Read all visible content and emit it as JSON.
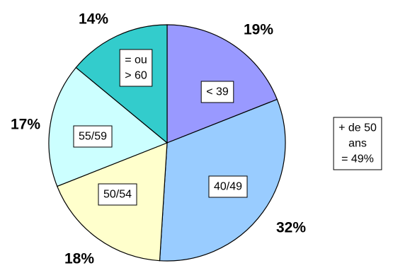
{
  "chart_data": {
    "type": "pie",
    "slices": [
      {
        "label": "< 39",
        "value": 19,
        "percent_label": "19%",
        "color": "#9999ff"
      },
      {
        "label": "40/49",
        "value": 32,
        "percent_label": "32%",
        "color": "#99ccff"
      },
      {
        "label": "50/54",
        "value": 18,
        "percent_label": "18%",
        "color": "#ffffcc"
      },
      {
        "label": "55/59",
        "value": 17,
        "percent_label": "17%",
        "color": "#ccffff"
      },
      {
        "label": "= ou\n> 60",
        "value": 14,
        "percent_label": "14%",
        "color": "#33cccc"
      }
    ],
    "annotation": "+ de 50\nans\n= 49%"
  }
}
